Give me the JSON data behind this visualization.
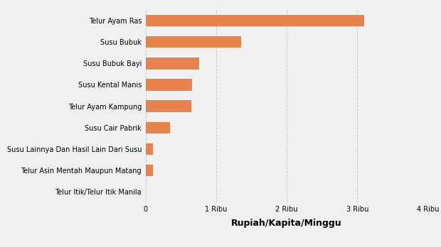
{
  "categories": [
    "Telur Itik/Telur Itik Manila",
    "Telur Asin Mentah Maupun Matang",
    "Susu Lainnya Dan Hasil Lain Dari Susu",
    "Susu Cair Pabrik",
    "Telur Ayam Kampung",
    "Susu Kental Manis",
    "Susu Bubuk Bayi",
    "Susu Bubuk",
    "Telur Ayam Ras"
  ],
  "values": [
    8,
    100,
    105,
    350,
    650,
    660,
    760,
    1350,
    3100
  ],
  "bar_color": "#E8834E",
  "background_color": "#F0F0F0",
  "xlabel": "Rupiah/Kapita/Minggu",
  "xlim": [
    0,
    4000
  ],
  "xticks": [
    0,
    1000,
    2000,
    3000,
    4000
  ],
  "xticklabels": [
    "0",
    "1 Ribu",
    "2 Ribu",
    "3 Ribu",
    "4 Ribu"
  ],
  "xlabel_fontsize": 9,
  "tick_fontsize": 7,
  "label_fontsize": 7,
  "bar_height": 0.55
}
